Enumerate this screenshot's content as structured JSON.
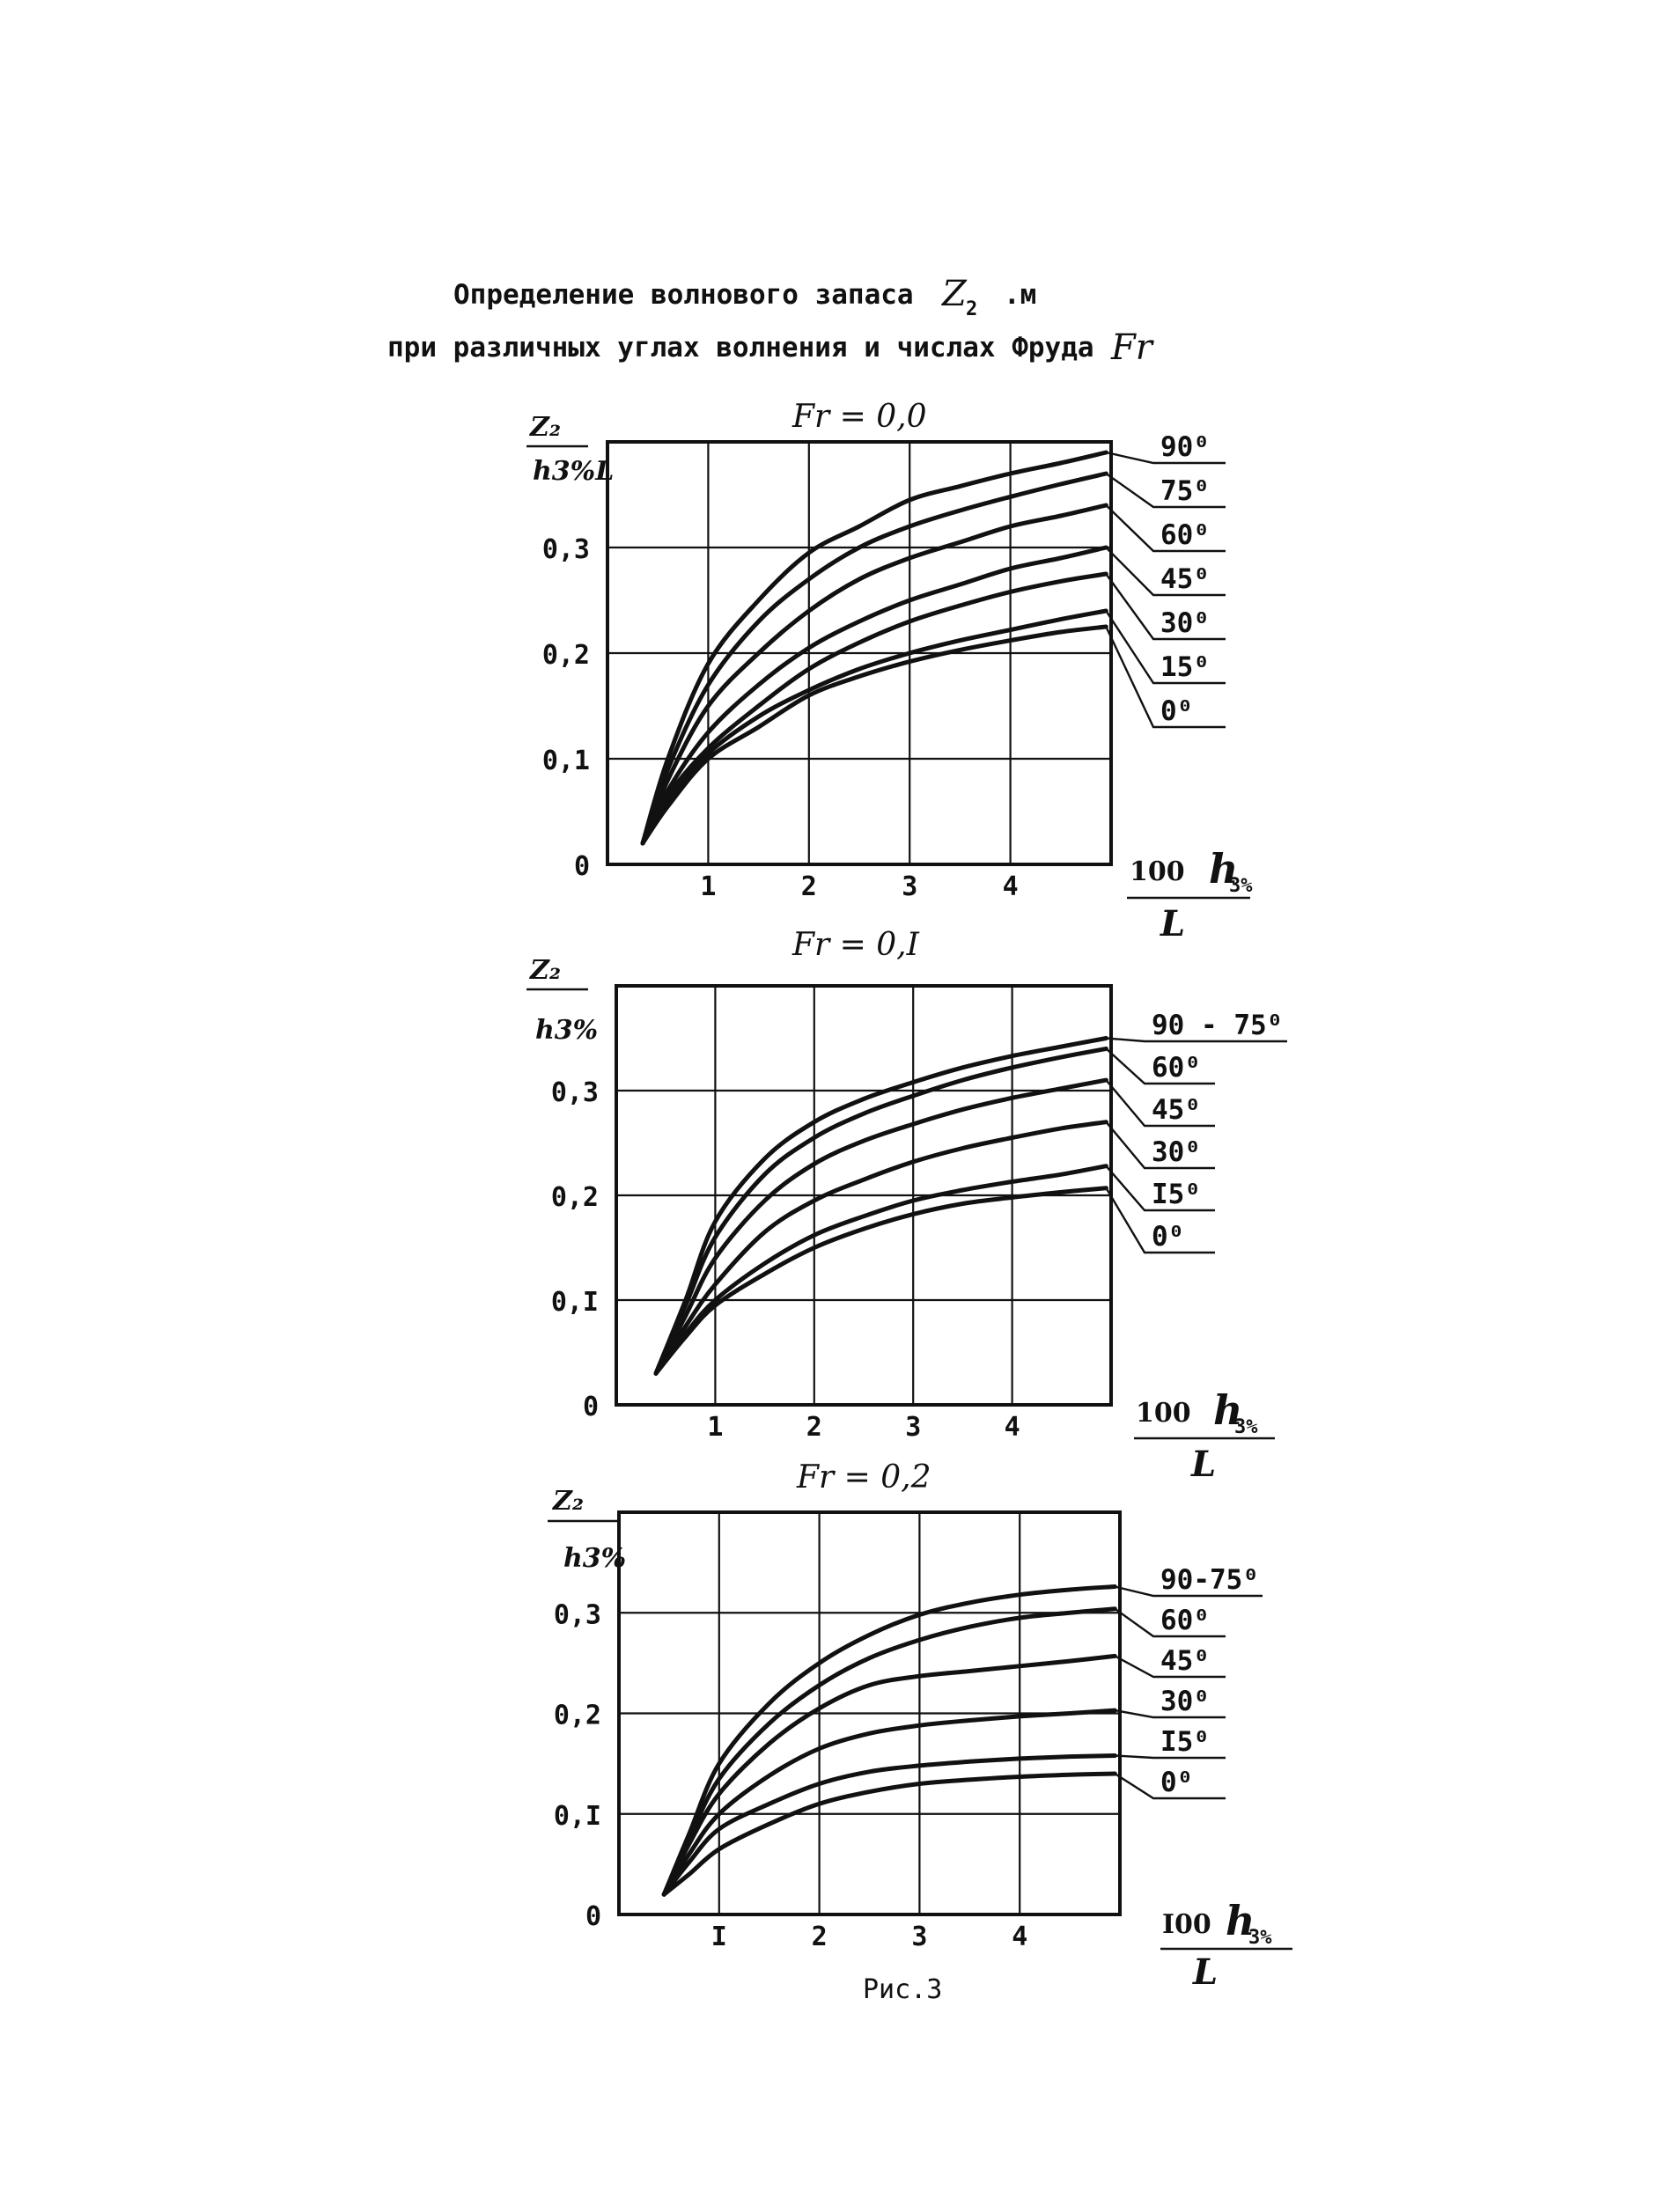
{
  "page": {
    "title_line1": "Определение волнового запаса",
    "title_symbol": "Z",
    "title_symbol_sub": "2",
    "title_unit": ".м",
    "title_line2": "при различных углах волнения и числах Фруда",
    "title_line2_symbol": "Fr",
    "figure_caption": "Рис.3"
  },
  "chart_data": [
    {
      "type": "line",
      "title": "Fₑ = 0,0",
      "title_text": "Fr = 0,0",
      "ylabel_top": "Z₂",
      "ylabel_bottom": "h3%L",
      "xlabel_top": "100",
      "xlabel_h": "h",
      "xlabel_sub": "3%",
      "xlabel_bottom": "L",
      "xlim": [
        0,
        5
      ],
      "ylim": [
        0,
        0.4
      ],
      "xticks": [
        "1",
        "2",
        "3",
        "4"
      ],
      "xtick_values": [
        1,
        2,
        3,
        4
      ],
      "yticks": [
        "0",
        "0,1",
        "0,2",
        "0,3"
      ],
      "ytick_values": [
        0,
        0.1,
        0.2,
        0.3
      ],
      "grid": true,
      "series": [
        {
          "name": "90⁰",
          "x": [
            0.35,
            0.6,
            1.0,
            1.5,
            2.0,
            2.5,
            3.0,
            3.5,
            4.0,
            4.5,
            4.95
          ],
          "y": [
            0.02,
            0.1,
            0.19,
            0.25,
            0.295,
            0.32,
            0.345,
            0.358,
            0.37,
            0.38,
            0.39
          ]
        },
        {
          "name": "75⁰",
          "x": [
            0.35,
            0.6,
            1.0,
            1.5,
            2.0,
            2.5,
            3.0,
            3.5,
            4.0,
            4.5,
            4.95
          ],
          "y": [
            0.02,
            0.09,
            0.17,
            0.23,
            0.27,
            0.3,
            0.32,
            0.335,
            0.348,
            0.36,
            0.37
          ]
        },
        {
          "name": "60⁰",
          "x": [
            0.35,
            0.6,
            1.0,
            1.5,
            2.0,
            2.5,
            3.0,
            3.5,
            4.0,
            4.5,
            4.95
          ],
          "y": [
            0.02,
            0.08,
            0.15,
            0.2,
            0.24,
            0.27,
            0.29,
            0.305,
            0.32,
            0.33,
            0.34
          ]
        },
        {
          "name": "45⁰",
          "x": [
            0.35,
            0.6,
            1.0,
            1.5,
            2.0,
            2.5,
            3.0,
            3.5,
            4.0,
            4.5,
            4.95
          ],
          "y": [
            0.02,
            0.07,
            0.125,
            0.17,
            0.205,
            0.23,
            0.25,
            0.265,
            0.28,
            0.29,
            0.3
          ]
        },
        {
          "name": "30⁰",
          "x": [
            0.35,
            0.6,
            1.0,
            1.5,
            2.0,
            2.5,
            3.0,
            3.5,
            4.0,
            4.5,
            4.95
          ],
          "y": [
            0.02,
            0.065,
            0.11,
            0.15,
            0.185,
            0.21,
            0.23,
            0.245,
            0.258,
            0.268,
            0.275
          ]
        },
        {
          "name": "15⁰",
          "x": [
            0.35,
            0.6,
            1.0,
            1.5,
            2.0,
            2.5,
            3.0,
            3.5,
            4.0,
            4.5,
            4.95
          ],
          "y": [
            0.02,
            0.06,
            0.105,
            0.14,
            0.165,
            0.185,
            0.2,
            0.212,
            0.222,
            0.232,
            0.24
          ]
        },
        {
          "name": "0⁰",
          "x": [
            0.35,
            0.6,
            1.0,
            1.5,
            2.0,
            2.5,
            3.0,
            3.5,
            4.0,
            4.5,
            4.95
          ],
          "y": [
            0.02,
            0.055,
            0.1,
            0.13,
            0.16,
            0.178,
            0.192,
            0.203,
            0.212,
            0.22,
            0.225
          ]
        }
      ]
    },
    {
      "type": "line",
      "title_text": "Fr = 0,I",
      "ylabel_top": "Z₂",
      "ylabel_bottom": "h3%",
      "xlabel_top": "100",
      "xlabel_h": "h",
      "xlabel_sub": "3%",
      "xlabel_bottom": "L",
      "xlim": [
        0,
        5
      ],
      "ylim": [
        0,
        0.4
      ],
      "xticks": [
        "1",
        "2",
        "3",
        "4"
      ],
      "xtick_values": [
        1,
        2,
        3,
        4
      ],
      "yticks": [
        "0",
        "0,I",
        "0,2",
        "0,3"
      ],
      "ytick_values": [
        0,
        0.1,
        0.2,
        0.3
      ],
      "grid": true,
      "series": [
        {
          "name": "90 - 75⁰",
          "x": [
            0.4,
            0.7,
            1.0,
            1.5,
            2.0,
            2.5,
            3.0,
            3.5,
            4.0,
            4.5,
            4.95
          ],
          "y": [
            0.03,
            0.1,
            0.175,
            0.235,
            0.27,
            0.292,
            0.308,
            0.322,
            0.333,
            0.342,
            0.35
          ]
        },
        {
          "name": "60⁰",
          "x": [
            0.4,
            0.7,
            1.0,
            1.5,
            2.0,
            2.5,
            3.0,
            3.5,
            4.0,
            4.5,
            4.95
          ],
          "y": [
            0.03,
            0.095,
            0.16,
            0.22,
            0.255,
            0.278,
            0.295,
            0.31,
            0.322,
            0.332,
            0.34
          ]
        },
        {
          "name": "45⁰",
          "x": [
            0.4,
            0.7,
            1.0,
            1.5,
            2.0,
            2.5,
            3.0,
            3.5,
            4.0,
            4.5,
            4.95
          ],
          "y": [
            0.03,
            0.085,
            0.14,
            0.195,
            0.23,
            0.252,
            0.268,
            0.282,
            0.293,
            0.302,
            0.31
          ]
        },
        {
          "name": "30⁰",
          "x": [
            0.4,
            0.7,
            1.0,
            1.5,
            2.0,
            2.5,
            3.0,
            3.5,
            4.0,
            4.5,
            4.95
          ],
          "y": [
            0.03,
            0.075,
            0.115,
            0.165,
            0.195,
            0.215,
            0.232,
            0.245,
            0.255,
            0.264,
            0.27
          ]
        },
        {
          "name": "I5⁰",
          "x": [
            0.4,
            0.7,
            1.0,
            1.5,
            2.0,
            2.5,
            3.0,
            3.5,
            4.0,
            4.5,
            4.95
          ],
          "y": [
            0.03,
            0.068,
            0.1,
            0.135,
            0.162,
            0.18,
            0.195,
            0.205,
            0.213,
            0.22,
            0.228
          ]
        },
        {
          "name": "0⁰",
          "x": [
            0.4,
            0.7,
            1.0,
            1.5,
            2.0,
            2.5,
            3.0,
            3.5,
            4.0,
            4.5,
            4.95
          ],
          "y": [
            0.03,
            0.065,
            0.095,
            0.125,
            0.15,
            0.168,
            0.182,
            0.192,
            0.198,
            0.203,
            0.207
          ]
        }
      ]
    },
    {
      "type": "line",
      "title_text": "Fr = 0,2",
      "ylabel_top": "Z₂",
      "ylabel_bottom": "h3%",
      "xlabel_top": "I00",
      "xlabel_h": "h",
      "xlabel_sub": "3%",
      "xlabel_bottom": "L",
      "xlim": [
        0,
        5
      ],
      "ylim": [
        0,
        0.4
      ],
      "xticks": [
        "I",
        "2",
        "3",
        "4"
      ],
      "xtick_values": [
        1,
        2,
        3,
        4
      ],
      "yticks": [
        "0",
        "0,I",
        "0,2",
        "0,3"
      ],
      "ytick_values": [
        0,
        0.1,
        0.2,
        0.3
      ],
      "grid": true,
      "series": [
        {
          "name": "90-75⁰",
          "x": [
            0.45,
            0.7,
            1.0,
            1.5,
            2.0,
            2.5,
            3.0,
            3.5,
            4.0,
            4.5,
            4.95
          ],
          "y": [
            0.02,
            0.08,
            0.15,
            0.21,
            0.25,
            0.278,
            0.298,
            0.31,
            0.318,
            0.323,
            0.326
          ]
        },
        {
          "name": "60⁰",
          "x": [
            0.45,
            0.7,
            1.0,
            1.5,
            2.0,
            2.5,
            3.0,
            3.5,
            4.0,
            4.5,
            4.95
          ],
          "y": [
            0.02,
            0.075,
            0.135,
            0.19,
            0.228,
            0.255,
            0.273,
            0.286,
            0.295,
            0.3,
            0.304
          ]
        },
        {
          "name": "45⁰",
          "x": [
            0.45,
            0.7,
            1.0,
            1.5,
            2.0,
            2.5,
            3.0,
            3.5,
            4.0,
            4.5,
            4.95
          ],
          "y": [
            0.02,
            0.07,
            0.12,
            0.17,
            0.205,
            0.228,
            0.237,
            0.242,
            0.247,
            0.252,
            0.257
          ]
        },
        {
          "name": "30⁰",
          "x": [
            0.45,
            0.7,
            1.0,
            1.5,
            2.0,
            2.5,
            3.0,
            3.5,
            4.0,
            4.5,
            4.95
          ],
          "y": [
            0.02,
            0.06,
            0.1,
            0.138,
            0.165,
            0.18,
            0.188,
            0.193,
            0.197,
            0.2,
            0.203
          ]
        },
        {
          "name": "I5⁰",
          "x": [
            0.45,
            0.7,
            1.0,
            1.5,
            2.0,
            2.5,
            3.0,
            3.5,
            4.0,
            4.5,
            4.95
          ],
          "y": [
            0.02,
            0.052,
            0.085,
            0.11,
            0.13,
            0.142,
            0.148,
            0.152,
            0.155,
            0.157,
            0.158
          ]
        },
        {
          "name": "0⁰",
          "x": [
            0.45,
            0.7,
            1.0,
            1.5,
            2.0,
            2.5,
            3.0,
            3.5,
            4.0,
            4.5,
            4.95
          ],
          "y": [
            0.02,
            0.04,
            0.065,
            0.09,
            0.11,
            0.122,
            0.13,
            0.134,
            0.137,
            0.139,
            0.14
          ]
        }
      ]
    }
  ]
}
